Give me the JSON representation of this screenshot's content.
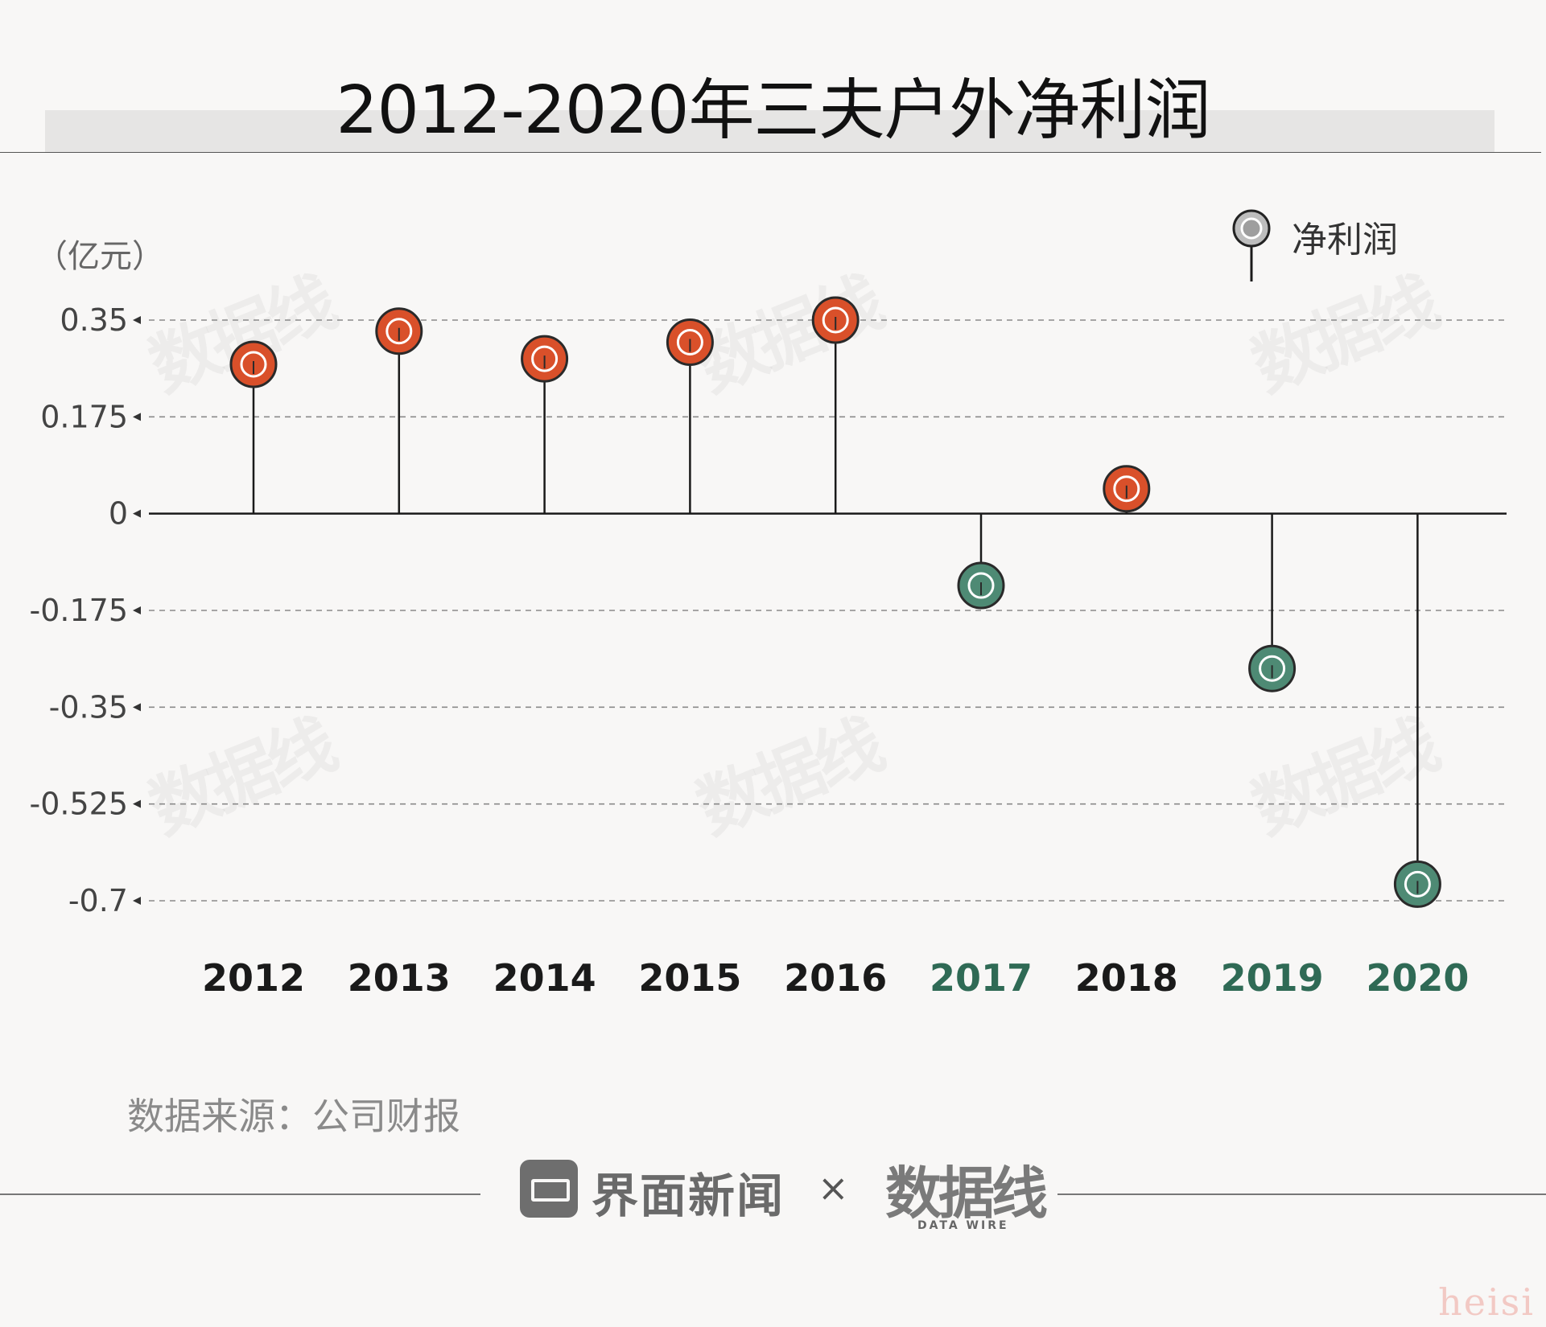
{
  "title": "2012-2020年三夫户外净利润",
  "unit_label": "（亿元）",
  "legend": {
    "label": "净利润"
  },
  "source": "数据来源：公司财报",
  "footer": {
    "brand": "界面新闻",
    "times": "×",
    "partner": "数据线",
    "partner_sub": "DATA WIRE"
  },
  "watermark": "heisi",
  "colors": {
    "positive": "#d9502a",
    "negative": "#4e8a74",
    "stem": "#1a1a1a",
    "grid": "#8a8a8a",
    "year_positive": "#1a1a1a",
    "year_negative": "#2f6a55"
  },
  "chart_data": {
    "type": "scatter",
    "style": "lollipop",
    "x": [
      "2012",
      "2013",
      "2014",
      "2015",
      "2016",
      "2017",
      "2018",
      "2019",
      "2020"
    ],
    "series": [
      {
        "name": "净利润",
        "values": [
          0.27,
          0.33,
          0.28,
          0.31,
          0.35,
          -0.13,
          0.045,
          -0.28,
          -0.67
        ]
      }
    ],
    "ylim": [
      -0.7,
      0.35
    ],
    "yticks": [
      "0.35",
      "0.175",
      "0",
      "-0.175",
      "-0.35",
      "-0.525",
      "-0.7"
    ],
    "ytick_values": [
      0.35,
      0.175,
      0,
      -0.175,
      -0.35,
      -0.525,
      -0.7
    ],
    "ylabel": "（亿元）",
    "xlabel": "",
    "grid": true,
    "legend_position": "top-right"
  }
}
